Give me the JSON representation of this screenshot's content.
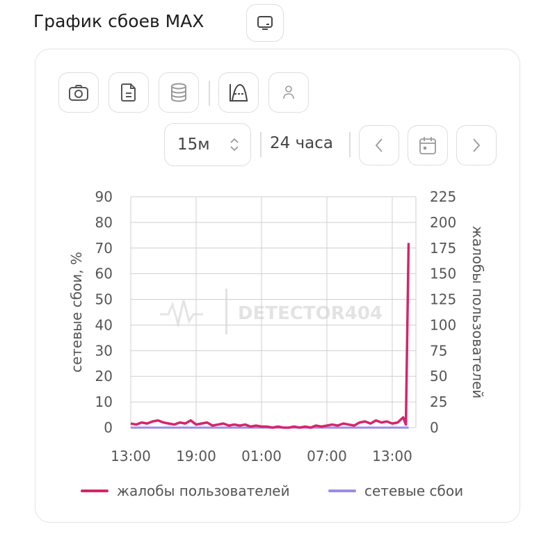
{
  "header": {
    "title": "График сбоев MAX",
    "tv_icon": "tv-icon"
  },
  "toolbar": {
    "icons": [
      "camera-icon",
      "document-icon",
      "database-icon",
      "chart-curve-icon",
      "user-icon"
    ],
    "interval": "15м",
    "range": "24 часа"
  },
  "colors": {
    "complaints": "#d6246b",
    "outages": "#9b8ce8",
    "grid": "#cfcfcf",
    "text": "#555"
  },
  "watermark": "DETECTOR404",
  "chart_data": {
    "type": "line",
    "ylabel": "сетевые сбои, %",
    "y2label": "жалобы пользователей",
    "ylim": [
      0,
      90
    ],
    "y2lim": [
      0,
      225
    ],
    "yticks": [
      0,
      10,
      20,
      30,
      40,
      50,
      60,
      70,
      80,
      90
    ],
    "y2ticks": [
      0,
      25,
      50,
      75,
      100,
      125,
      150,
      175,
      200,
      225
    ],
    "xticks": [
      "13:00",
      "19:00",
      "01:00",
      "07:00",
      "13:00"
    ],
    "grid": true,
    "legend": "bottom",
    "x": [
      "13:00",
      "13:30",
      "14:00",
      "14:30",
      "15:00",
      "15:30",
      "16:00",
      "16:30",
      "17:00",
      "17:30",
      "18:00",
      "18:30",
      "19:00",
      "19:30",
      "20:00",
      "20:30",
      "21:00",
      "21:30",
      "22:00",
      "22:30",
      "23:00",
      "23:30",
      "00:00",
      "00:30",
      "01:00",
      "01:30",
      "02:00",
      "02:30",
      "03:00",
      "03:30",
      "04:00",
      "04:30",
      "05:00",
      "05:30",
      "06:00",
      "06:30",
      "07:00",
      "07:30",
      "08:00",
      "08:30",
      "09:00",
      "09:30",
      "10:00",
      "10:30",
      "11:00",
      "11:30",
      "12:00",
      "12:30",
      "13:00",
      "13:30",
      "14:00",
      "14:15",
      "14:30"
    ],
    "series": [
      {
        "name": "жалобы пользователей",
        "axis": "right",
        "values": [
          4,
          3,
          5,
          4,
          6,
          7,
          5,
          4,
          3,
          5,
          4,
          7,
          3,
          4,
          5,
          2,
          3,
          4,
          2,
          3,
          2,
          3,
          1,
          2,
          1,
          1,
          0,
          1,
          0,
          0,
          1,
          0,
          1,
          0,
          2,
          1,
          2,
          3,
          2,
          4,
          3,
          2,
          5,
          6,
          4,
          7,
          5,
          6,
          4,
          5,
          10,
          3,
          180
        ]
      },
      {
        "name": "сетевые сбои",
        "axis": "left",
        "values": [
          0,
          0,
          0,
          0,
          0,
          0,
          0,
          0,
          0,
          0,
          0,
          0,
          0,
          0,
          0,
          0,
          0,
          0,
          0,
          0,
          0,
          0,
          0,
          0,
          0,
          0,
          0,
          0,
          0,
          0,
          0,
          0,
          0,
          0,
          0,
          0,
          0,
          0,
          0,
          0,
          0,
          0,
          0,
          0,
          0,
          0,
          0,
          0,
          0,
          0,
          0,
          0,
          0
        ]
      }
    ]
  }
}
